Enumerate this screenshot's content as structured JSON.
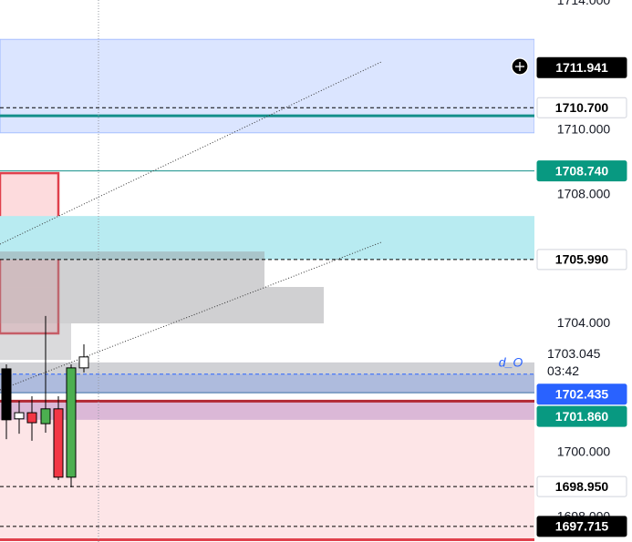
{
  "chart_data": {
    "type": "candlestick",
    "ylim": [
      1697.23,
      1714.04
    ],
    "yticks": [
      {
        "value": 1714,
        "label": "1714.000"
      },
      {
        "value": 1710,
        "label": "1710.000"
      },
      {
        "value": 1708,
        "label": "1708.000"
      },
      {
        "value": 1704,
        "label": "1704.000"
      },
      {
        "value": 1700,
        "label": "1700.000"
      },
      {
        "value": 1698,
        "label": "1698.000"
      }
    ],
    "candles": {
      "open": [
        1702.6,
        1701.05,
        1701.24,
        1700.9,
        1701.36,
        1699.24,
        1702.63
      ],
      "high": [
        1702.74,
        1701.61,
        1701.75,
        1704.24,
        1701.75,
        1702.74,
        1703.36
      ],
      "low": [
        1700.42,
        1700.59,
        1700.37,
        1700.62,
        1699.15,
        1698.93,
        1702.49
      ],
      "close": [
        1701.02,
        1701.24,
        1700.93,
        1701.36,
        1699.24,
        1702.63,
        1702.97
      ],
      "colors": [
        "#000000",
        "#ffffff",
        "#f23645",
        "#4caf50",
        "#f23645",
        "#4caf50",
        "#ffffff"
      ]
    },
    "zones": [
      {
        "top": 1712.82,
        "bottom": 1709.92,
        "color": "rgba(41,98,255,0.17)",
        "border": "rgba(41,98,255,0.35)"
      },
      {
        "top": 1708.67,
        "bottom": 1703.7,
        "color": "rgba(242,54,69,0.18)",
        "border": "#e0404c"
      },
      {
        "top": 1707.34,
        "bottom": 1705.99,
        "color": "#b8ebf1",
        "border": "none"
      },
      {
        "top": 1706.24,
        "bottom": 1705.14,
        "color": "rgba(150,150,155,0.45)",
        "border": "none"
      },
      {
        "top": 1705.14,
        "bottom": 1704.01,
        "color": "rgba(150,150,155,0.45)",
        "border": "none"
      },
      {
        "top": 1704.01,
        "bottom": 1702.88,
        "color": "rgba(150,150,155,0.35)",
        "border": "none"
      },
      {
        "top": 1702.8,
        "bottom": 1701.86,
        "color": "rgba(120,123,134,0.35)",
        "border": "none"
      },
      {
        "top": 1702.435,
        "bottom": 1701.86,
        "color": "rgba(41,98,255,0.2)",
        "border": "none"
      },
      {
        "top": 1701.6,
        "bottom": 1701.02,
        "color": "rgba(126,87,194,0.3)",
        "border": "none"
      },
      {
        "top": 1701.6,
        "bottom": 1697.3,
        "color": "rgba(242,54,69,0.13)",
        "border": "none"
      }
    ],
    "levels": [
      {
        "value": 1710.7,
        "color": "#000000",
        "dash": true,
        "width": 1
      },
      {
        "value": 1710.45,
        "color": "#138f8a",
        "dash": false,
        "width": 3
      },
      {
        "value": 1708.74,
        "color": "#138f8a",
        "dash": false,
        "width": 1
      },
      {
        "value": 1705.99,
        "color": "#000000",
        "dash": true,
        "width": 1
      },
      {
        "value": 1702.435,
        "color": "#2962ff",
        "dash": true,
        "width": 1
      },
      {
        "value": 1701.86,
        "color": "#3a6ea5",
        "dash": false,
        "width": 1
      },
      {
        "value": 1701.6,
        "color": "#b22833",
        "dash": false,
        "width": 3
      },
      {
        "value": 1698.95,
        "color": "#000000",
        "dash": true,
        "width": 1
      },
      {
        "value": 1697.715,
        "color": "#000000",
        "dash": true,
        "width": 1
      },
      {
        "value": 1697.3,
        "color": "#e0404c",
        "dash": false,
        "width": 3
      }
    ],
    "price_labels": [
      {
        "value": 1711.941,
        "label": "1711.941",
        "bg": "#000000",
        "fg": "#ffffff"
      },
      {
        "value": 1710.7,
        "label": "1710.700",
        "bg": "#ffffff",
        "fg": "#000000"
      },
      {
        "value": 1708.74,
        "label": "1708.740",
        "bg": "#089981",
        "fg": "#ffffff"
      },
      {
        "value": 1705.99,
        "label": "1705.990",
        "bg": "#ffffff",
        "fg": "#000000"
      },
      {
        "value": 1702.435,
        "label": "1702.435",
        "bg": "#2962ff",
        "fg": "#ffffff"
      },
      {
        "value": 1701.86,
        "label": "1701.860",
        "bg": "#089981",
        "fg": "#ffffff"
      },
      {
        "value": 1698.95,
        "label": "1698.950",
        "bg": "#ffffff",
        "fg": "#000000"
      },
      {
        "value": 1697.715,
        "label": "1697.715",
        "bg": "#000000",
        "fg": "#ffffff"
      }
    ],
    "last_price": {
      "value": 1703.045,
      "label": "1703.045"
    },
    "countdown": "03:42",
    "annotation": "d_O"
  }
}
